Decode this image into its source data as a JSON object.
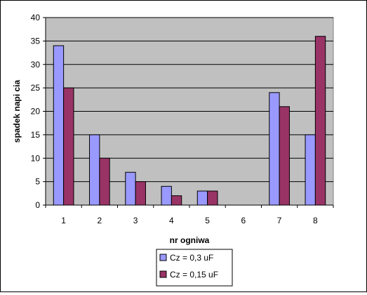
{
  "chart_data": {
    "type": "bar",
    "categories": [
      "1",
      "2",
      "3",
      "4",
      "5",
      "6",
      "7",
      "8"
    ],
    "series": [
      {
        "name": "Cz = 0,3 uF",
        "values": [
          34,
          15,
          7,
          4,
          3,
          0,
          24,
          15
        ],
        "color": "#9999ff"
      },
      {
        "name": "Cz = 0,15 uF",
        "values": [
          25,
          10,
          5,
          2,
          3,
          0,
          21,
          36
        ],
        "color": "#993366"
      }
    ],
    "title": "",
    "xlabel": "nr ogniwa",
    "ylabel": "spadek napi  cia",
    "ylim": [
      0,
      40
    ],
    "yticks": [
      0,
      5,
      10,
      15,
      20,
      25,
      30,
      35,
      40
    ],
    "grid": true,
    "plot_background": "#c0c0c0",
    "legend_position": "bottom"
  }
}
